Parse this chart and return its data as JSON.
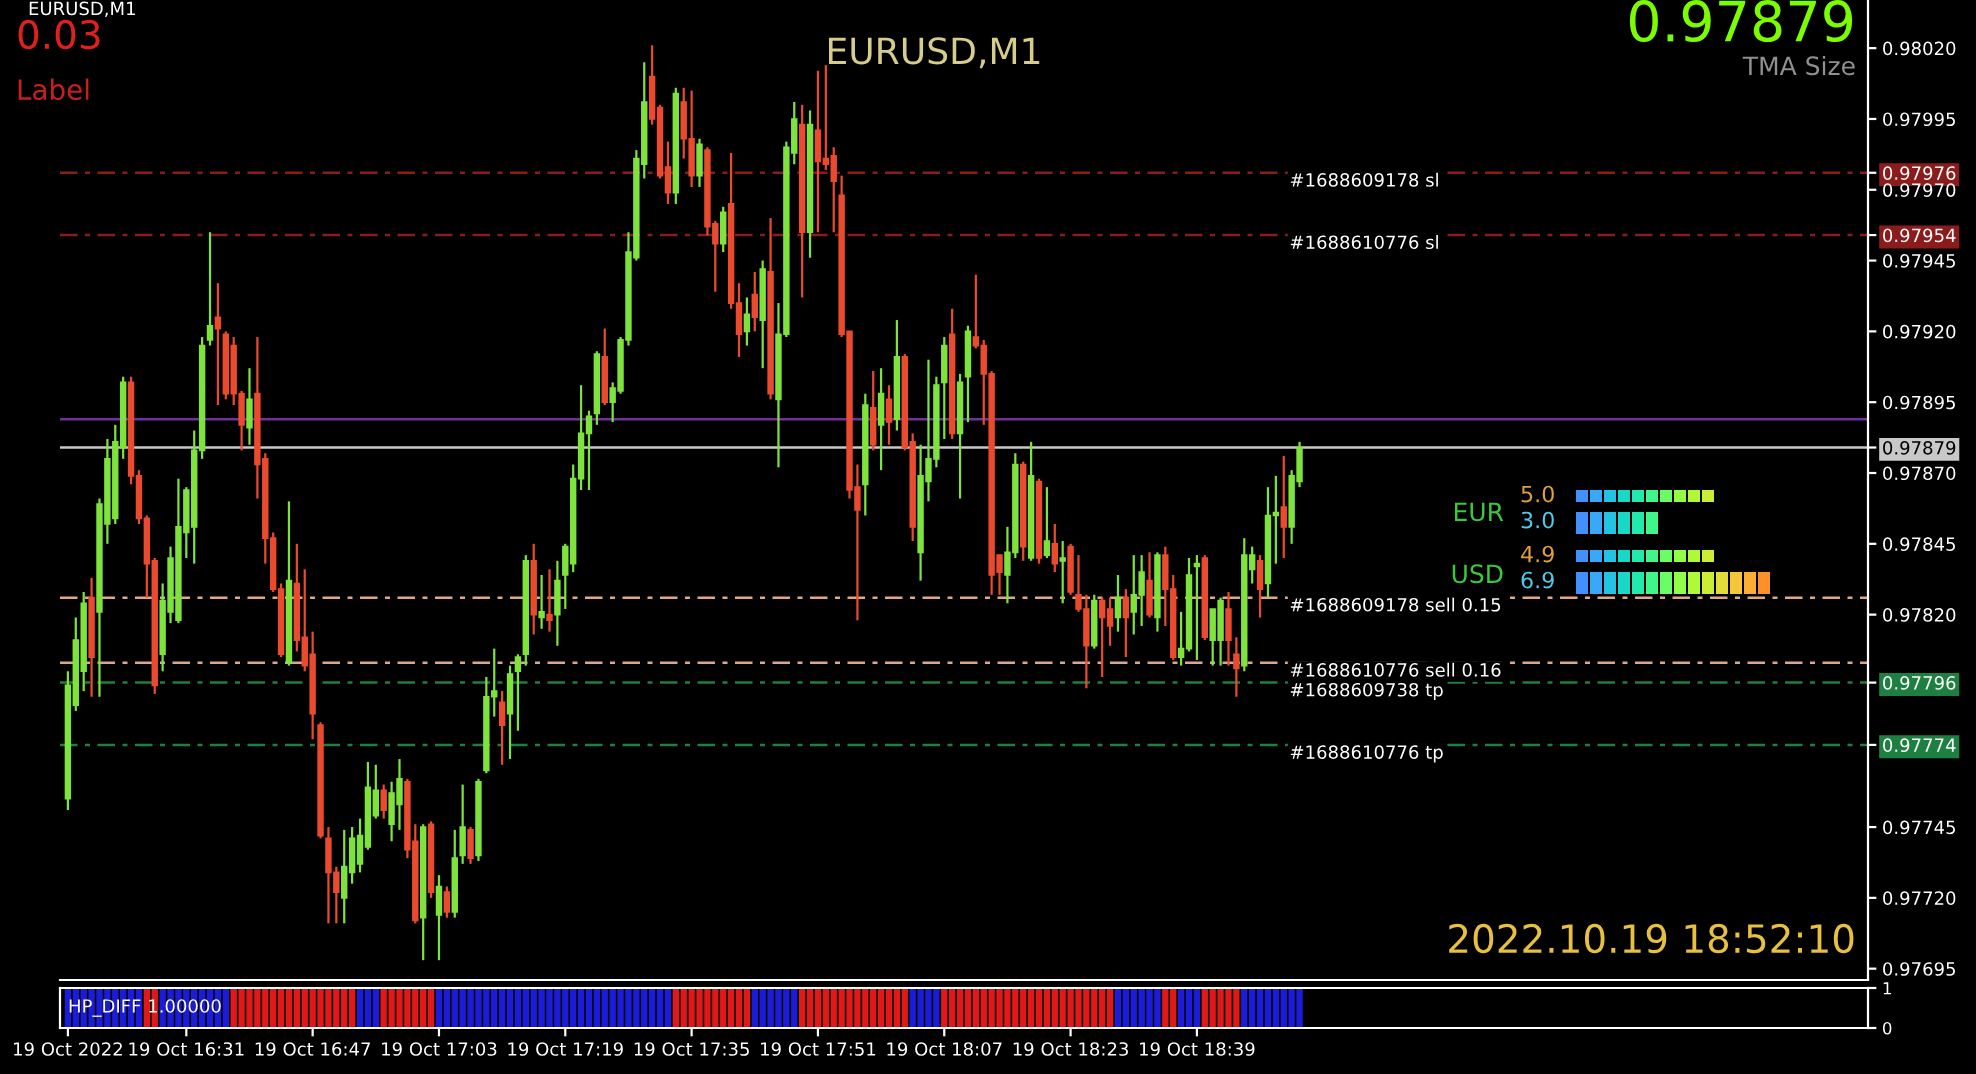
{
  "chart_data": [
    {
      "type": "candlestick",
      "title": "EURUSD,M1",
      "x": [
        "2022-10-19T16:16",
        "2022-10-19T16:17",
        "2022-10-19T16:18",
        "2022-10-19T16:19",
        "2022-10-19T16:20",
        "2022-10-19T16:21",
        "2022-10-19T16:22",
        "2022-10-19T16:23",
        "2022-10-19T16:24",
        "2022-10-19T16:25",
        "2022-10-19T16:26",
        "2022-10-19T16:27",
        "2022-10-19T16:28",
        "2022-10-19T16:29",
        "2022-10-19T16:30",
        "2022-10-19T16:31",
        "2022-10-19T16:32",
        "2022-10-19T16:33",
        "2022-10-19T16:34",
        "2022-10-19T16:35",
        "2022-10-19T16:36",
        "2022-10-19T16:37",
        "2022-10-19T16:38",
        "2022-10-19T16:39",
        "2022-10-19T16:40",
        "2022-10-19T16:41",
        "2022-10-19T16:42",
        "2022-10-19T16:43",
        "2022-10-19T16:44",
        "2022-10-19T16:45",
        "2022-10-19T16:46",
        "2022-10-19T16:47",
        "2022-10-19T16:48",
        "2022-10-19T16:49",
        "2022-10-19T16:50",
        "2022-10-19T16:51",
        "2022-10-19T16:52",
        "2022-10-19T16:53",
        "2022-10-19T16:54",
        "2022-10-19T16:55",
        "2022-10-19T16:56",
        "2022-10-19T16:57",
        "2022-10-19T16:58",
        "2022-10-19T16:59",
        "2022-10-19T17:00",
        "2022-10-19T17:01",
        "2022-10-19T17:02",
        "2022-10-19T17:03",
        "2022-10-19T17:04",
        "2022-10-19T17:05",
        "2022-10-19T17:06",
        "2022-10-19T17:07",
        "2022-10-19T17:08",
        "2022-10-19T17:09",
        "2022-10-19T17:10",
        "2022-10-19T17:11",
        "2022-10-19T17:12",
        "2022-10-19T17:13",
        "2022-10-19T17:14",
        "2022-10-19T17:15",
        "2022-10-19T17:16",
        "2022-10-19T17:17",
        "2022-10-19T17:18",
        "2022-10-19T17:19",
        "2022-10-19T17:20",
        "2022-10-19T17:21",
        "2022-10-19T17:22",
        "2022-10-19T17:23",
        "2022-10-19T17:24",
        "2022-10-19T17:25",
        "2022-10-19T17:26",
        "2022-10-19T17:27",
        "2022-10-19T17:28",
        "2022-10-19T17:29",
        "2022-10-19T17:30",
        "2022-10-19T17:31",
        "2022-10-19T17:32",
        "2022-10-19T17:33",
        "2022-10-19T17:34",
        "2022-10-19T17:35",
        "2022-10-19T17:36",
        "2022-10-19T17:37",
        "2022-10-19T17:38",
        "2022-10-19T17:39",
        "2022-10-19T17:40",
        "2022-10-19T17:41",
        "2022-10-19T17:42",
        "2022-10-19T17:43",
        "2022-10-19T17:44",
        "2022-10-19T17:45",
        "2022-10-19T17:46",
        "2022-10-19T17:47",
        "2022-10-19T17:48",
        "2022-10-19T17:49",
        "2022-10-19T17:50",
        "2022-10-19T17:51",
        "2022-10-19T17:52",
        "2022-10-19T17:53",
        "2022-10-19T17:54",
        "2022-10-19T17:55",
        "2022-10-19T17:56",
        "2022-10-19T17:57",
        "2022-10-19T17:58",
        "2022-10-19T17:59",
        "2022-10-19T18:00",
        "2022-10-19T18:01",
        "2022-10-19T18:02",
        "2022-10-19T18:03",
        "2022-10-19T18:04",
        "2022-10-19T18:05",
        "2022-10-19T18:06",
        "2022-10-19T18:07",
        "2022-10-19T18:08",
        "2022-10-19T18:09",
        "2022-10-19T18:10",
        "2022-10-19T18:11",
        "2022-10-19T18:12",
        "2022-10-19T18:13",
        "2022-10-19T18:14",
        "2022-10-19T18:15",
        "2022-10-19T18:16",
        "2022-10-19T18:17",
        "2022-10-19T18:18",
        "2022-10-19T18:19",
        "2022-10-19T18:20",
        "2022-10-19T18:21",
        "2022-10-19T18:22",
        "2022-10-19T18:23",
        "2022-10-19T18:24",
        "2022-10-19T18:25",
        "2022-10-19T18:26",
        "2022-10-19T18:27",
        "2022-10-19T18:28",
        "2022-10-19T18:29",
        "2022-10-19T18:30",
        "2022-10-19T18:31",
        "2022-10-19T18:32",
        "2022-10-19T18:33",
        "2022-10-19T18:34",
        "2022-10-19T18:35",
        "2022-10-19T18:36",
        "2022-10-19T18:37",
        "2022-10-19T18:38",
        "2022-10-19T18:39",
        "2022-10-19T18:40",
        "2022-10-19T18:41",
        "2022-10-19T18:42",
        "2022-10-19T18:43",
        "2022-10-19T18:44",
        "2022-10-19T18:45",
        "2022-10-19T18:46",
        "2022-10-19T18:47",
        "2022-10-19T18:48",
        "2022-10-19T18:49",
        "2022-10-19T18:50",
        "2022-10-19T18:51",
        "2022-10-19T18:52"
      ],
      "ohlc": [
        [
          0.97755,
          0.978,
          0.97751,
          0.97795
        ],
        [
          0.97788,
          0.97819,
          0.97786,
          0.97811
        ],
        [
          0.978,
          0.97828,
          0.97793,
          0.97824
        ],
        [
          0.97826,
          0.97833,
          0.97791,
          0.97805
        ],
        [
          0.97821,
          0.97861,
          0.97791,
          0.97859
        ],
        [
          0.97852,
          0.97882,
          0.97845,
          0.97875
        ],
        [
          0.97854,
          0.97887,
          0.97852,
          0.97881
        ],
        [
          0.97879,
          0.97904,
          0.97875,
          0.97902
        ],
        [
          0.97902,
          0.97904,
          0.97866,
          0.97869
        ],
        [
          0.97869,
          0.97871,
          0.97852,
          0.97854
        ],
        [
          0.97854,
          0.97855,
          0.97826,
          0.97838
        ],
        [
          0.97839,
          0.9784,
          0.97792,
          0.97795
        ],
        [
          0.97806,
          0.97831,
          0.978,
          0.97825
        ],
        [
          0.97821,
          0.97844,
          0.97817,
          0.9784
        ],
        [
          0.97818,
          0.97868,
          0.97817,
          0.97851
        ],
        [
          0.97849,
          0.97865,
          0.9784,
          0.97864
        ],
        [
          0.97851,
          0.97885,
          0.97838,
          0.97878
        ],
        [
          0.97878,
          0.97918,
          0.97875,
          0.97915
        ],
        [
          0.97917,
          0.97955,
          0.97915,
          0.97922
        ],
        [
          0.97925,
          0.97937,
          0.97894,
          0.97921
        ],
        [
          0.97919,
          0.9792,
          0.97896,
          0.97898
        ],
        [
          0.97915,
          0.97918,
          0.97894,
          0.97898
        ],
        [
          0.97898,
          0.97899,
          0.97878,
          0.97887
        ],
        [
          0.97886,
          0.97907,
          0.9788,
          0.97896
        ],
        [
          0.97898,
          0.97918,
          0.97861,
          0.97873
        ],
        [
          0.97875,
          0.97877,
          0.97838,
          0.97847
        ],
        [
          0.97847,
          0.97849,
          0.97828,
          0.97829
        ],
        [
          0.97829,
          0.97831,
          0.97805,
          0.97806
        ],
        [
          0.97803,
          0.9786,
          0.97802,
          0.97832
        ],
        [
          0.97831,
          0.97845,
          0.97807,
          0.97811
        ],
        [
          0.97812,
          0.97836,
          0.978,
          0.97802
        ],
        [
          0.97806,
          0.97814,
          0.97776,
          0.97785
        ],
        [
          0.97781,
          0.97782,
          0.97741,
          0.97742
        ],
        [
          0.97741,
          0.97745,
          0.97711,
          0.97729
        ],
        [
          0.97729,
          0.97731,
          0.97711,
          0.97722
        ],
        [
          0.9772,
          0.97744,
          0.97711,
          0.97731
        ],
        [
          0.97729,
          0.97745,
          0.97725,
          0.97741
        ],
        [
          0.97732,
          0.97748,
          0.97729,
          0.97742
        ],
        [
          0.97738,
          0.97768,
          0.97737,
          0.97759
        ],
        [
          0.97749,
          0.97767,
          0.97748,
          0.97758
        ],
        [
          0.97758,
          0.9776,
          0.97748,
          0.97751
        ],
        [
          0.97746,
          0.97761,
          0.9774,
          0.97757
        ],
        [
          0.97753,
          0.97769,
          0.97744,
          0.97762
        ],
        [
          0.97761,
          0.97762,
          0.97734,
          0.97737
        ],
        [
          0.9774,
          0.97746,
          0.97711,
          0.97712
        ],
        [
          0.97713,
          0.97746,
          0.97698,
          0.97745
        ],
        [
          0.97746,
          0.97747,
          0.9772,
          0.97722
        ],
        [
          0.97714,
          0.97728,
          0.97698,
          0.97724
        ],
        [
          0.97722,
          0.97724,
          0.97713,
          0.97715
        ],
        [
          0.97715,
          0.97744,
          0.97713,
          0.97734
        ],
        [
          0.97735,
          0.9776,
          0.97732,
          0.97745
        ],
        [
          0.97744,
          0.97745,
          0.97732,
          0.97734
        ],
        [
          0.97735,
          0.97762,
          0.97733,
          0.97761
        ],
        [
          0.97765,
          0.97798,
          0.97764,
          0.97791
        ],
        [
          0.97791,
          0.97808,
          0.97784,
          0.97793
        ],
        [
          0.97789,
          0.97793,
          0.97767,
          0.97781
        ],
        [
          0.97785,
          0.97802,
          0.97769,
          0.97799
        ],
        [
          0.978,
          0.97806,
          0.97779,
          0.97805
        ],
        [
          0.97806,
          0.97841,
          0.97802,
          0.97839
        ],
        [
          0.97839,
          0.97845,
          0.97813,
          0.9782
        ],
        [
          0.97819,
          0.97834,
          0.97815,
          0.97821
        ],
        [
          0.9782,
          0.97836,
          0.97814,
          0.97818
        ],
        [
          0.9782,
          0.97839,
          0.97809,
          0.97832
        ],
        [
          0.97834,
          0.97845,
          0.97822,
          0.97844
        ],
        [
          0.97838,
          0.97873,
          0.97835,
          0.97868
        ],
        [
          0.97868,
          0.97901,
          0.97864,
          0.97884
        ],
        [
          0.97884,
          0.97892,
          0.97864,
          0.9789
        ],
        [
          0.97891,
          0.97913,
          0.97887,
          0.97912
        ],
        [
          0.97911,
          0.97921,
          0.97894,
          0.97895
        ],
        [
          0.97895,
          0.97902,
          0.97888,
          0.979
        ],
        [
          0.97899,
          0.97918,
          0.97898,
          0.97917
        ],
        [
          0.97917,
          0.97955,
          0.97915,
          0.97948
        ],
        [
          0.97946,
          0.97984,
          0.97945,
          0.97981
        ],
        [
          0.97979,
          0.98015,
          0.97974,
          0.98001
        ],
        [
          0.9801,
          0.98021,
          0.97993,
          0.97995
        ],
        [
          0.97999,
          0.98,
          0.97974,
          0.97975
        ],
        [
          0.97978,
          0.97987,
          0.97965,
          0.97969
        ],
        [
          0.97969,
          0.98006,
          0.97965,
          0.98004
        ],
        [
          0.98001,
          0.98006,
          0.97981,
          0.97988
        ],
        [
          0.97988,
          0.98005,
          0.97971,
          0.97975
        ],
        [
          0.97975,
          0.97988,
          0.97971,
          0.97986
        ],
        [
          0.97984,
          0.97985,
          0.97954,
          0.97957
        ],
        [
          0.97958,
          0.97959,
          0.97934,
          0.97951
        ],
        [
          0.97951,
          0.97964,
          0.97948,
          0.97962
        ],
        [
          0.97965,
          0.97983,
          0.97928,
          0.9793
        ],
        [
          0.9793,
          0.97937,
          0.97911,
          0.97919
        ],
        [
          0.9792,
          0.97932,
          0.97915,
          0.97926
        ],
        [
          0.97933,
          0.97941,
          0.9792,
          0.97925
        ],
        [
          0.97924,
          0.97945,
          0.97907,
          0.97942
        ],
        [
          0.97941,
          0.9796,
          0.97896,
          0.97898
        ],
        [
          0.97896,
          0.9793,
          0.97872,
          0.97919
        ],
        [
          0.97919,
          0.97987,
          0.97918,
          0.97985
        ],
        [
          0.97983,
          0.98001,
          0.97979,
          0.97995
        ],
        [
          0.97993,
          0.98,
          0.97932,
          0.97955
        ],
        [
          0.97955,
          0.97998,
          0.97946,
          0.97993
        ],
        [
          0.97991,
          0.98012,
          0.97955,
          0.9798
        ],
        [
          0.97981,
          0.98014,
          0.97977,
          0.97979
        ],
        [
          0.97982,
          0.97985,
          0.97955,
          0.97973
        ],
        [
          0.97968,
          0.97975,
          0.97918,
          0.97919
        ],
        [
          0.9792,
          0.9792,
          0.97861,
          0.97864
        ],
        [
          0.97865,
          0.97873,
          0.97818,
          0.97857
        ],
        [
          0.97866,
          0.97898,
          0.97855,
          0.97894
        ],
        [
          0.97893,
          0.97906,
          0.97878,
          0.9788
        ],
        [
          0.97887,
          0.97907,
          0.97871,
          0.97898
        ],
        [
          0.97896,
          0.97901,
          0.9788,
          0.97888
        ],
        [
          0.97889,
          0.97924,
          0.97885,
          0.97911
        ],
        [
          0.97911,
          0.97912,
          0.97878,
          0.97879
        ],
        [
          0.97881,
          0.97884,
          0.97846,
          0.97851
        ],
        [
          0.97842,
          0.9788,
          0.97832,
          0.97869
        ],
        [
          0.97867,
          0.9791,
          0.9786,
          0.97875
        ],
        [
          0.97875,
          0.97904,
          0.97872,
          0.97901
        ],
        [
          0.97902,
          0.97918,
          0.97882,
          0.97915
        ],
        [
          0.97919,
          0.97928,
          0.97882,
          0.97884
        ],
        [
          0.97884,
          0.97905,
          0.97861,
          0.97902
        ],
        [
          0.97904,
          0.97922,
          0.97888,
          0.9792
        ],
        [
          0.97918,
          0.9794,
          0.97914,
          0.97915
        ],
        [
          0.97915,
          0.97917,
          0.97887,
          0.97905
        ],
        [
          0.97905,
          0.97906,
          0.97827,
          0.97834
        ],
        [
          0.97841,
          0.97841,
          0.97827,
          0.97835
        ],
        [
          0.97834,
          0.97851,
          0.97824,
          0.97842
        ],
        [
          0.97842,
          0.97877,
          0.9784,
          0.97873
        ],
        [
          0.97873,
          0.97874,
          0.97839,
          0.97844
        ],
        [
          0.9784,
          0.97881,
          0.97839,
          0.97869
        ],
        [
          0.97867,
          0.97868,
          0.97838,
          0.9784
        ],
        [
          0.97841,
          0.97865,
          0.9784,
          0.97846
        ],
        [
          0.97845,
          0.97852,
          0.97835,
          0.97838
        ],
        [
          0.97839,
          0.97846,
          0.97824,
          0.9784
        ],
        [
          0.97844,
          0.97845,
          0.97827,
          0.97828
        ],
        [
          0.97827,
          0.97841,
          0.97821,
          0.97822
        ],
        [
          0.97822,
          0.97827,
          0.97794,
          0.97809
        ],
        [
          0.97809,
          0.97827,
          0.97808,
          0.97825
        ],
        [
          0.97825,
          0.97826,
          0.97798,
          0.97819
        ],
        [
          0.97822,
          0.97826,
          0.97809,
          0.97816
        ],
        [
          0.97819,
          0.97834,
          0.97814,
          0.97826
        ],
        [
          0.97826,
          0.97829,
          0.97805,
          0.97819
        ],
        [
          0.97821,
          0.97841,
          0.97813,
          0.97827
        ],
        [
          0.97827,
          0.97841,
          0.97816,
          0.97835
        ],
        [
          0.97832,
          0.97842,
          0.97819,
          0.9782
        ],
        [
          0.97819,
          0.97842,
          0.97814,
          0.97841
        ],
        [
          0.97841,
          0.97844,
          0.97816,
          0.97829
        ],
        [
          0.97829,
          0.97834,
          0.97804,
          0.97805
        ],
        [
          0.97805,
          0.97821,
          0.97802,
          0.97808
        ],
        [
          0.97808,
          0.9784,
          0.97807,
          0.97834
        ],
        [
          0.97837,
          0.97841,
          0.97804,
          0.97838
        ],
        [
          0.9784,
          0.97841,
          0.97811,
          0.97812
        ],
        [
          0.97811,
          0.97822,
          0.97802,
          0.97822
        ],
        [
          0.97811,
          0.97826,
          0.97802,
          0.97825
        ],
        [
          0.97822,
          0.97828,
          0.97802,
          0.97811
        ],
        [
          0.97806,
          0.97812,
          0.97791,
          0.97801
        ],
        [
          0.97802,
          0.97847,
          0.978,
          0.97841
        ],
        [
          0.97836,
          0.97844,
          0.97831,
          0.97841
        ],
        [
          0.97839,
          0.97841,
          0.97819,
          0.97829
        ],
        [
          0.97831,
          0.97865,
          0.97826,
          0.97855
        ],
        [
          0.97855,
          0.97869,
          0.97838,
          0.97856
        ],
        [
          0.97858,
          0.97876,
          0.9784,
          0.97851
        ],
        [
          0.97851,
          0.97871,
          0.97845,
          0.97869
        ],
        [
          0.97867,
          0.97881,
          0.97865,
          0.97879
        ]
      ],
      "colors": [
        "#7ee33d",
        "#7ee33d",
        "#7ee33d",
        "#ea4b2f",
        "#7ee33d",
        "#7ee33d",
        "#7ee33d",
        "#7ee33d",
        "#ea4b2f",
        "#ea4b2f",
        "#ea4b2f",
        "#ea4b2f",
        "#7ee33d",
        "#7ee33d",
        "#7ee33d",
        "#7ee33d",
        "#7ee33d",
        "#7ee33d",
        "#7ee33d",
        "#ea4b2f",
        "#ea4b2f",
        "#ea4b2f",
        "#ea4b2f",
        "#7ee33d",
        "#ea4b2f",
        "#ea4b2f",
        "#ea4b2f",
        "#ea4b2f",
        "#7ee33d",
        "#ea4b2f",
        "#ea4b2f",
        "#ea4b2f",
        "#ea4b2f",
        "#ea4b2f",
        "#ea4b2f",
        "#7ee33d",
        "#7ee33d",
        "#7ee33d",
        "#7ee33d",
        "#7ee33d",
        "#ea4b2f",
        "#7ee33d",
        "#7ee33d",
        "#ea4b2f",
        "#ea4b2f",
        "#7ee33d",
        "#ea4b2f",
        "#7ee33d",
        "#ea4b2f",
        "#7ee33d",
        "#7ee33d",
        "#ea4b2f",
        "#7ee33d",
        "#7ee33d",
        "#7ee33d",
        "#ea4b2f",
        "#7ee33d",
        "#7ee33d",
        "#7ee33d",
        "#ea4b2f",
        "#7ee33d",
        "#ea4b2f",
        "#7ee33d",
        "#7ee33d",
        "#7ee33d",
        "#7ee33d",
        "#7ee33d",
        "#7ee33d",
        "#ea4b2f",
        "#7ee33d",
        "#7ee33d",
        "#7ee33d",
        "#7ee33d",
        "#7ee33d",
        "#ea4b2f",
        "#ea4b2f",
        "#ea4b2f",
        "#7ee33d",
        "#ea4b2f",
        "#ea4b2f",
        "#7ee33d",
        "#ea4b2f",
        "#ea4b2f",
        "#7ee33d",
        "#ea4b2f",
        "#ea4b2f",
        "#7ee33d",
        "#ea4b2f",
        "#7ee33d",
        "#ea4b2f",
        "#7ee33d",
        "#7ee33d",
        "#7ee33d",
        "#ea4b2f",
        "#7ee33d",
        "#ea4b2f",
        "#ea4b2f",
        "#ea4b2f",
        "#ea4b2f",
        "#ea4b2f",
        "#ea4b2f",
        "#7ee33d",
        "#ea4b2f",
        "#7ee33d",
        "#ea4b2f",
        "#7ee33d",
        "#ea4b2f",
        "#ea4b2f",
        "#7ee33d",
        "#7ee33d",
        "#7ee33d",
        "#7ee33d",
        "#ea4b2f",
        "#7ee33d",
        "#7ee33d",
        "#ea4b2f",
        "#ea4b2f",
        "#ea4b2f",
        "#ea4b2f",
        "#7ee33d",
        "#7ee33d",
        "#ea4b2f",
        "#7ee33d",
        "#ea4b2f",
        "#7ee33d",
        "#ea4b2f",
        "#7ee33d",
        "#ea4b2f",
        "#ea4b2f",
        "#ea4b2f",
        "#7ee33d",
        "#ea4b2f",
        "#ea4b2f",
        "#7ee33d",
        "#ea4b2f",
        "#7ee33d",
        "#7ee33d",
        "#ea4b2f",
        "#7ee33d",
        "#ea4b2f",
        "#ea4b2f",
        "#7ee33d",
        "#7ee33d",
        "#7ee33d",
        "#ea4b2f",
        "#7ee33d",
        "#7ee33d",
        "#ea4b2f",
        "#ea4b2f",
        "#7ee33d",
        "#7ee33d",
        "#ea4b2f",
        "#7ee33d",
        "#7ee33d",
        "#ea4b2f",
        "#7ee33d",
        "#7ee33d"
      ],
      "xlim": [
        "2022-10-19T16:15",
        "2022-10-19T20:04"
      ],
      "ylim": [
        0.97691,
        0.98037
      ],
      "yticks": [
        {
          "value": 0.9802,
          "label": "0.98020"
        },
        {
          "value": 0.97995,
          "label": "0.97995"
        },
        {
          "value": 0.97976,
          "label": "0.97976"
        },
        {
          "value": 0.9797,
          "label": "0.97970"
        },
        {
          "value": 0.97954,
          "label": "0.97954"
        },
        {
          "value": 0.97945,
          "label": "0.97945"
        },
        {
          "value": 0.9792,
          "label": "0.97920"
        },
        {
          "value": 0.97895,
          "label": "0.97895"
        },
        {
          "value": 0.97879,
          "label": "0.97879"
        },
        {
          "value": 0.9787,
          "label": "0.97870"
        },
        {
          "value": 0.97845,
          "label": "0.97845"
        },
        {
          "value": 0.9782,
          "label": "0.97820"
        },
        {
          "value": 0.97796,
          "label": "0.97796"
        },
        {
          "value": 0.97774,
          "label": "0.97774"
        },
        {
          "value": 0.97745,
          "label": "0.97745"
        },
        {
          "value": 0.9772,
          "label": "0.97720"
        },
        {
          "value": 0.97695,
          "label": "0.97695"
        }
      ],
      "tick_labels": "y",
      "ref_lines": [
        {
          "axis": "y",
          "value": 0.97976,
          "label": "#1688609178 sl",
          "color": "#8b1c1c",
          "line_style": "dashed"
        },
        {
          "axis": "y",
          "value": 0.97954,
          "label": "#1688610776 sl",
          "color": "#8b1c1c",
          "line_style": "dashed"
        },
        {
          "axis": "y",
          "value": 0.97889,
          "color": "#7030a0",
          "line_style": "solid"
        },
        {
          "axis": "y",
          "value": 0.97879,
          "color": "#c8c8c8",
          "line_style": "solid"
        },
        {
          "axis": "y",
          "value": 0.97826,
          "label": "#1688609178 sell 0.15",
          "color": "#e0a888",
          "line_style": "dashed"
        },
        {
          "axis": "y",
          "value": 0.97803,
          "label": "#1688610776 sell 0.16",
          "color": "#d8a890",
          "line_style": "dashed"
        },
        {
          "axis": "y",
          "value": 0.97796,
          "label": "#1688609738 tp",
          "color": "#1e8040",
          "line_style": "dashed"
        },
        {
          "axis": "y",
          "value": 0.97774,
          "label": "#1688610776 tp",
          "color": "#1e8040",
          "line_style": "dashed"
        }
      ],
      "annotations": [
        "EURUSD,M1",
        "0.03",
        "Label",
        "0.97879",
        "TMA Size",
        "EUR",
        "5.0",
        "3.0",
        "USD",
        "4.9",
        "6.9",
        "2022.10.19 18:52:10"
      ]
    },
    {
      "type": "bar",
      "title": "HP_DIFF 1.00000",
      "x": [
        "2022-10-19T16:16",
        "2022-10-19T16:17",
        "2022-10-19T16:18",
        "2022-10-19T16:19",
        "2022-10-19T16:20",
        "2022-10-19T16:21",
        "2022-10-19T16:22",
        "2022-10-19T16:23",
        "2022-10-19T16:24",
        "2022-10-19T16:25",
        "2022-10-19T16:26",
        "2022-10-19T16:27",
        "2022-10-19T16:28",
        "2022-10-19T16:29",
        "2022-10-19T16:30",
        "2022-10-19T16:31",
        "2022-10-19T16:32",
        "2022-10-19T16:33",
        "2022-10-19T16:34",
        "2022-10-19T16:35",
        "2022-10-19T16:36",
        "2022-10-19T16:37",
        "2022-10-19T16:38",
        "2022-10-19T16:39",
        "2022-10-19T16:40",
        "2022-10-19T16:41",
        "2022-10-19T16:42",
        "2022-10-19T16:43",
        "2022-10-19T16:44",
        "2022-10-19T16:45",
        "2022-10-19T16:46",
        "2022-10-19T16:47",
        "2022-10-19T16:48",
        "2022-10-19T16:49",
        "2022-10-19T16:50",
        "2022-10-19T16:51",
        "2022-10-19T16:52",
        "2022-10-19T16:53",
        "2022-10-19T16:54",
        "2022-10-19T16:55",
        "2022-10-19T16:56",
        "2022-10-19T16:57",
        "2022-10-19T16:58",
        "2022-10-19T16:59",
        "2022-10-19T17:00",
        "2022-10-19T17:01",
        "2022-10-19T17:02",
        "2022-10-19T17:03",
        "2022-10-19T17:04",
        "2022-10-19T17:05",
        "2022-10-19T17:06",
        "2022-10-19T17:07",
        "2022-10-19T17:08",
        "2022-10-19T17:09",
        "2022-10-19T17:10",
        "2022-10-19T17:11",
        "2022-10-19T17:12",
        "2022-10-19T17:13",
        "2022-10-19T17:14",
        "2022-10-19T17:15",
        "2022-10-19T17:16",
        "2022-10-19T17:17",
        "2022-10-19T17:18",
        "2022-10-19T17:19",
        "2022-10-19T17:20",
        "2022-10-19T17:21",
        "2022-10-19T17:22",
        "2022-10-19T17:23",
        "2022-10-19T17:24",
        "2022-10-19T17:25",
        "2022-10-19T17:26",
        "2022-10-19T17:27",
        "2022-10-19T17:28",
        "2022-10-19T17:29",
        "2022-10-19T17:30",
        "2022-10-19T17:31",
        "2022-10-19T17:32",
        "2022-10-19T17:33",
        "2022-10-19T17:34",
        "2022-10-19T17:35",
        "2022-10-19T17:36",
        "2022-10-19T17:37",
        "2022-10-19T17:38",
        "2022-10-19T17:39",
        "2022-10-19T17:40",
        "2022-10-19T17:41",
        "2022-10-19T17:42",
        "2022-10-19T17:43",
        "2022-10-19T17:44",
        "2022-10-19T17:45",
        "2022-10-19T17:46",
        "2022-10-19T17:47",
        "2022-10-19T17:48",
        "2022-10-19T17:49",
        "2022-10-19T17:50",
        "2022-10-19T17:51",
        "2022-10-19T17:52",
        "2022-10-19T17:53",
        "2022-10-19T17:54",
        "2022-10-19T17:55",
        "2022-10-19T17:56",
        "2022-10-19T17:57",
        "2022-10-19T17:58",
        "2022-10-19T17:59",
        "2022-10-19T18:00",
        "2022-10-19T18:01",
        "2022-10-19T18:02",
        "2022-10-19T18:03",
        "2022-10-19T18:04",
        "2022-10-19T18:05",
        "2022-10-19T18:06",
        "2022-10-19T18:07",
        "2022-10-19T18:08",
        "2022-10-19T18:09",
        "2022-10-19T18:10",
        "2022-10-19T18:11",
        "2022-10-19T18:12",
        "2022-10-19T18:13",
        "2022-10-19T18:14",
        "2022-10-19T18:15",
        "2022-10-19T18:16",
        "2022-10-19T18:17",
        "2022-10-19T18:18",
        "2022-10-19T18:19",
        "2022-10-19T18:20",
        "2022-10-19T18:21",
        "2022-10-19T18:22",
        "2022-10-19T18:23",
        "2022-10-19T18:24",
        "2022-10-19T18:25",
        "2022-10-19T18:26",
        "2022-10-19T18:27",
        "2022-10-19T18:28",
        "2022-10-19T18:29",
        "2022-10-19T18:30",
        "2022-10-19T18:31",
        "2022-10-19T18:32",
        "2022-10-19T18:33",
        "2022-10-19T18:34",
        "2022-10-19T18:35",
        "2022-10-19T18:36",
        "2022-10-19T18:37",
        "2022-10-19T18:38",
        "2022-10-19T18:39",
        "2022-10-19T18:40",
        "2022-10-19T18:41",
        "2022-10-19T18:42",
        "2022-10-19T18:43",
        "2022-10-19T18:44",
        "2022-10-19T18:45",
        "2022-10-19T18:46",
        "2022-10-19T18:47",
        "2022-10-19T18:48",
        "2022-10-19T18:49",
        "2022-10-19T18:50",
        "2022-10-19T18:51",
        "2022-10-19T18:52"
      ],
      "values": [
        1,
        1,
        1,
        1,
        1,
        1,
        1,
        1,
        1,
        1,
        1,
        1,
        1,
        1,
        1,
        1,
        1,
        1,
        1,
        1,
        1,
        1,
        1,
        1,
        1,
        1,
        1,
        1,
        1,
        1,
        1,
        1,
        1,
        1,
        1,
        1,
        1,
        1,
        1,
        1,
        1,
        1,
        1,
        1,
        1,
        1,
        1,
        1,
        1,
        1,
        1,
        1,
        1,
        1,
        1,
        1,
        1,
        1,
        1,
        1,
        1,
        1,
        1,
        1,
        1,
        1,
        1,
        1,
        1,
        1,
        1,
        1,
        1,
        1,
        1,
        1,
        1,
        1,
        1,
        1,
        1,
        1,
        1,
        1,
        1,
        1,
        1,
        1,
        1,
        1,
        1,
        1,
        1,
        1,
        1,
        1,
        1,
        1,
        1,
        1,
        1,
        1,
        1,
        1,
        1,
        1,
        1,
        1,
        1,
        1,
        1,
        1,
        1,
        1,
        1,
        1,
        1,
        1,
        1,
        1,
        1,
        1,
        1,
        1,
        1,
        1,
        1,
        1,
        1,
        1,
        1,
        1,
        1,
        1,
        1,
        1,
        1,
        1,
        1,
        1,
        1,
        1,
        1,
        1,
        1,
        1,
        1,
        1,
        1,
        1,
        1,
        1,
        1,
        1,
        1,
        1,
        1
      ],
      "colors": [
        "#1c1cd8",
        "#1c1cd8",
        "#1c1cd8",
        "#1c1cd8",
        "#1c1cd8",
        "#1c1cd8",
        "#1c1cd8",
        "#1c1cd8",
        "#1c1cd8",
        "#1c1cd8",
        "#e01818",
        "#e01818",
        "#1c1cd8",
        "#1c1cd8",
        "#1c1cd8",
        "#1c1cd8",
        "#1c1cd8",
        "#1c1cd8",
        "#1c1cd8",
        "#1c1cd8",
        "#1c1cd8",
        "#e01818",
        "#e01818",
        "#e01818",
        "#e01818",
        "#e01818",
        "#e01818",
        "#e01818",
        "#e01818",
        "#e01818",
        "#e01818",
        "#e01818",
        "#e01818",
        "#e01818",
        "#e01818",
        "#e01818",
        "#e01818",
        "#1c1cd8",
        "#1c1cd8",
        "#1c1cd8",
        "#e01818",
        "#e01818",
        "#e01818",
        "#e01818",
        "#e01818",
        "#e01818",
        "#e01818",
        "#1c1cd8",
        "#1c1cd8",
        "#1c1cd8",
        "#1c1cd8",
        "#1c1cd8",
        "#1c1cd8",
        "#1c1cd8",
        "#1c1cd8",
        "#1c1cd8",
        "#1c1cd8",
        "#1c1cd8",
        "#1c1cd8",
        "#1c1cd8",
        "#1c1cd8",
        "#1c1cd8",
        "#1c1cd8",
        "#1c1cd8",
        "#1c1cd8",
        "#1c1cd8",
        "#1c1cd8",
        "#1c1cd8",
        "#1c1cd8",
        "#1c1cd8",
        "#1c1cd8",
        "#1c1cd8",
        "#1c1cd8",
        "#1c1cd8",
        "#1c1cd8",
        "#1c1cd8",
        "#1c1cd8",
        "#e01818",
        "#e01818",
        "#e01818",
        "#e01818",
        "#e01818",
        "#e01818",
        "#e01818",
        "#e01818",
        "#e01818",
        "#e01818",
        "#1c1cd8",
        "#1c1cd8",
        "#1c1cd8",
        "#1c1cd8",
        "#1c1cd8",
        "#1c1cd8",
        "#e01818",
        "#e01818",
        "#e01818",
        "#e01818",
        "#e01818",
        "#e01818",
        "#e01818",
        "#e01818",
        "#e01818",
        "#e01818",
        "#e01818",
        "#e01818",
        "#e01818",
        "#e01818",
        "#1c1cd8",
        "#1c1cd8",
        "#1c1cd8",
        "#1c1cd8",
        "#e01818",
        "#e01818",
        "#e01818",
        "#e01818",
        "#e01818",
        "#e01818",
        "#e01818",
        "#e01818",
        "#e01818",
        "#e01818",
        "#e01818",
        "#e01818",
        "#e01818",
        "#e01818",
        "#e01818",
        "#e01818",
        "#e01818",
        "#e01818",
        "#e01818",
        "#e01818",
        "#e01818",
        "#e01818",
        "#1c1cd8",
        "#1c1cd8",
        "#1c1cd8",
        "#1c1cd8",
        "#1c1cd8",
        "#1c1cd8",
        "#e01818",
        "#e01818",
        "#1c1cd8",
        "#1c1cd8",
        "#1c1cd8",
        "#e01818",
        "#e01818",
        "#e01818",
        "#e01818",
        "#e01818",
        "#1c1cd8",
        "#1c1cd8",
        "#1c1cd8",
        "#1c1cd8",
        "#1c1cd8",
        "#1c1cd8",
        "#1c1cd8",
        "#1c1cd8"
      ],
      "xlim": [
        "2022-10-19T16:15",
        "2022-10-19T20:04"
      ],
      "ylim": [
        0,
        1
      ],
      "yticks": [
        0,
        1
      ],
      "xticks": [
        {
          "value": "2022-10-19T16:16",
          "label": "19 Oct 2022"
        },
        {
          "value": "2022-10-19T16:31",
          "label": "19 Oct 16:31"
        },
        {
          "value": "2022-10-19T16:47",
          "label": "19 Oct 16:47"
        },
        {
          "value": "2022-10-19T17:03",
          "label": "19 Oct 17:03"
        },
        {
          "value": "2022-10-19T17:19",
          "label": "19 Oct 17:19"
        },
        {
          "value": "2022-10-19T17:35",
          "label": "19 Oct 17:35"
        },
        {
          "value": "2022-10-19T17:51",
          "label": "19 Oct 17:51"
        },
        {
          "value": "2022-10-19T18:07",
          "label": "19 Oct 18:07"
        },
        {
          "value": "2022-10-19T18:23",
          "label": "19 Oct 18:23"
        },
        {
          "value": "2022-10-19T18:39",
          "label": "19 Oct 18:39"
        }
      ]
    }
  ]
}
